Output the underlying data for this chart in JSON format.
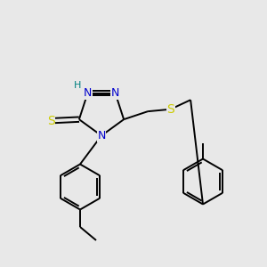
{
  "bg_color": "#e8e8e8",
  "atom_colors": {
    "N": "#0000cc",
    "S": "#cccc00",
    "H": "#008080",
    "C": "#000000"
  },
  "bond_color": "#000000",
  "bond_lw": 1.4
}
